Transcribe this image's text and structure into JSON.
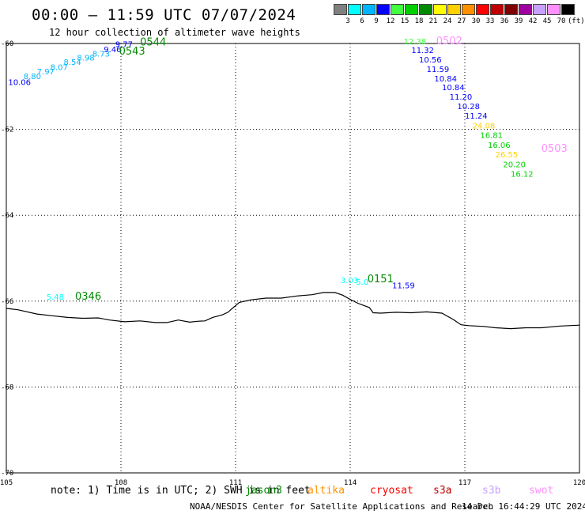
{
  "header": {
    "title": "00:00 — 11:59 UTC 07/07/2024",
    "subtitle": "12 hour collection of altimeter wave heights"
  },
  "legend": {
    "unit": "(ft)",
    "bins": [
      {
        "color": "#808080",
        "label": "3"
      },
      {
        "color": "#00ffff",
        "label": "6"
      },
      {
        "color": "#00b4ff",
        "label": "9"
      },
      {
        "color": "#0000ff",
        "label": "12"
      },
      {
        "color": "#40ff40",
        "label": "15"
      },
      {
        "color": "#00d000",
        "label": "18"
      },
      {
        "color": "#008a00",
        "label": "21"
      },
      {
        "color": "#ffff00",
        "label": "24"
      },
      {
        "color": "#ffd000",
        "label": "27"
      },
      {
        "color": "#ff9000",
        "label": "30"
      },
      {
        "color": "#ff0000",
        "label": "33"
      },
      {
        "color": "#c00000",
        "label": "36"
      },
      {
        "color": "#800000",
        "label": "39"
      },
      {
        "color": "#a000a0",
        "label": "42"
      },
      {
        "color": "#c8a0ff",
        "label": "45"
      },
      {
        "color": "#ff90ff",
        "label": "70"
      },
      {
        "color": "#000000",
        "label": ""
      }
    ]
  },
  "map": {
    "lon_range": [
      105,
      120
    ],
    "lat_range": [
      -70,
      -60
    ],
    "lon_ticks": [
      {
        "lon": 105,
        "label": "105"
      },
      {
        "lon": 108,
        "label": "108"
      },
      {
        "lon": 111,
        "label": "111"
      },
      {
        "lon": 114,
        "label": "114"
      },
      {
        "lon": 117,
        "label": "117"
      },
      {
        "lon": 120,
        "label": "120"
      }
    ],
    "lat_ticks": [
      {
        "lat": -60,
        "label": "-60"
      },
      {
        "lat": -62,
        "label": "-62"
      },
      {
        "lat": -64,
        "label": "-64"
      },
      {
        "lat": -66,
        "label": "-66"
      },
      {
        "lat": -68,
        "label": "-68"
      },
      {
        "lat": -70,
        "label": "-70"
      }
    ],
    "grid": "dotted",
    "coastline": [
      [
        105.0,
        -66.17
      ],
      [
        105.3,
        -66.2
      ],
      [
        105.8,
        -66.3
      ],
      [
        106.2,
        -66.34
      ],
      [
        106.6,
        -66.38
      ],
      [
        107.0,
        -66.4
      ],
      [
        107.4,
        -66.39
      ],
      [
        107.7,
        -66.44
      ],
      [
        108.1,
        -66.48
      ],
      [
        108.5,
        -66.46
      ],
      [
        108.9,
        -66.5
      ],
      [
        109.2,
        -66.5
      ],
      [
        109.5,
        -66.44
      ],
      [
        109.8,
        -66.49
      ],
      [
        110.0,
        -66.47
      ],
      [
        110.2,
        -66.46
      ],
      [
        110.4,
        -66.38
      ],
      [
        110.65,
        -66.32
      ],
      [
        110.8,
        -66.26
      ],
      [
        110.9,
        -66.18
      ],
      [
        111.1,
        -66.03
      ],
      [
        111.4,
        -65.97
      ],
      [
        111.8,
        -65.93
      ],
      [
        112.2,
        -65.93
      ],
      [
        112.6,
        -65.88
      ],
      [
        113.0,
        -65.85
      ],
      [
        113.3,
        -65.8
      ],
      [
        113.6,
        -65.8
      ],
      [
        113.8,
        -65.86
      ],
      [
        114.0,
        -65.96
      ],
      [
        114.2,
        -66.05
      ],
      [
        114.35,
        -66.1
      ],
      [
        114.5,
        -66.15
      ],
      [
        114.6,
        -66.27
      ],
      [
        114.8,
        -66.28
      ],
      [
        115.2,
        -66.26
      ],
      [
        115.6,
        -66.27
      ],
      [
        116.0,
        -66.25
      ],
      [
        116.4,
        -66.28
      ],
      [
        116.7,
        -66.43
      ],
      [
        116.9,
        -66.55
      ],
      [
        117.1,
        -66.57
      ],
      [
        117.5,
        -66.59
      ],
      [
        117.8,
        -66.62
      ],
      [
        118.2,
        -66.64
      ],
      [
        118.6,
        -66.62
      ],
      [
        119.0,
        -66.62
      ],
      [
        119.5,
        -66.58
      ],
      [
        120.0,
        -66.56
      ]
    ],
    "passes": [
      {
        "label": "0543",
        "lon": 107.95,
        "lat": -60.26,
        "color": "#008a00"
      },
      {
        "label": "0544",
        "lon": 108.5,
        "lat": -60.05,
        "color": "#008a00"
      },
      {
        "label": "0502",
        "lon": 116.25,
        "lat": -60.02,
        "color": "#ff90ff"
      },
      {
        "label": "0503",
        "lon": 119.0,
        "lat": -62.52,
        "color": "#ff90ff"
      },
      {
        "label": "0346",
        "lon": 106.8,
        "lat": -65.97,
        "color": "#008a00"
      },
      {
        "label": "0151",
        "lon": 114.45,
        "lat": -65.56,
        "color": "#008a00"
      }
    ],
    "wave_labels": [
      {
        "value": "10.06",
        "lon": 105.05,
        "lat": -60.97,
        "color": "#0000ff"
      },
      {
        "value": "8.80",
        "lon": 105.45,
        "lat": -60.83,
        "color": "#00b4ff"
      },
      {
        "value": "7.97",
        "lon": 105.8,
        "lat": -60.72,
        "color": "#00b4ff"
      },
      {
        "value": "8.07",
        "lon": 106.15,
        "lat": -60.62,
        "color": "#00b4ff"
      },
      {
        "value": "8.54",
        "lon": 106.5,
        "lat": -60.5,
        "color": "#00b4ff"
      },
      {
        "value": "8.98",
        "lon": 106.85,
        "lat": -60.4,
        "color": "#00b4ff"
      },
      {
        "value": "8.73",
        "lon": 107.25,
        "lat": -60.3,
        "color": "#00b4ff"
      },
      {
        "value": "9.46",
        "lon": 107.55,
        "lat": -60.2,
        "color": "#0000ff"
      },
      {
        "value": "9.77",
        "lon": 107.85,
        "lat": -60.08,
        "color": "#0000ff"
      },
      {
        "value": "12.38",
        "lon": 115.4,
        "lat": -60.02,
        "color": "#40ff40"
      },
      {
        "value": "11.32",
        "lon": 115.6,
        "lat": -60.22,
        "color": "#0000ff"
      },
      {
        "value": "10.56",
        "lon": 115.8,
        "lat": -60.44,
        "color": "#0000ff"
      },
      {
        "value": "11.59",
        "lon": 116.0,
        "lat": -60.66,
        "color": "#0000ff"
      },
      {
        "value": "10.84",
        "lon": 116.2,
        "lat": -60.88,
        "color": "#0000ff"
      },
      {
        "value": "10.84",
        "lon": 116.4,
        "lat": -61.09,
        "color": "#0000ff"
      },
      {
        "value": "11.20",
        "lon": 116.6,
        "lat": -61.31,
        "color": "#0000ff"
      },
      {
        "value": "10.28",
        "lon": 116.8,
        "lat": -61.53,
        "color": "#0000ff"
      },
      {
        "value": "11.24",
        "lon": 117.0,
        "lat": -61.75,
        "color": "#0000ff"
      },
      {
        "value": "24.08",
        "lon": 117.2,
        "lat": -61.98,
        "color": "#ffd000"
      },
      {
        "value": "16.81",
        "lon": 117.4,
        "lat": -62.2,
        "color": "#00d000"
      },
      {
        "value": "16.06",
        "lon": 117.6,
        "lat": -62.43,
        "color": "#00d000"
      },
      {
        "value": "26.55",
        "lon": 117.8,
        "lat": -62.65,
        "color": "#ffd000"
      },
      {
        "value": "20.20",
        "lon": 118.0,
        "lat": -62.88,
        "color": "#00d000"
      },
      {
        "value": "16.12",
        "lon": 118.2,
        "lat": -63.1,
        "color": "#00d000"
      },
      {
        "value": "5.48",
        "lon": 106.05,
        "lat": -65.97,
        "color": "#00ffff"
      },
      {
        "value": "3.03",
        "lon": 113.75,
        "lat": -65.58,
        "color": "#00ffff"
      },
      {
        "value": "5.0",
        "lon": 114.15,
        "lat": -65.62,
        "color": "#00ffff"
      },
      {
        "value": "11.59",
        "lon": 115.1,
        "lat": -65.7,
        "color": "#0000ff"
      }
    ]
  },
  "footer": {
    "note": "note: 1) Time is in UTC; 2) SWH is in feet",
    "missions": [
      {
        "name": "jason3",
        "color": "#008a00"
      },
      {
        "name": "altika",
        "color": "#ff9000"
      },
      {
        "name": "cryosat",
        "color": "#ff0000"
      },
      {
        "name": "s3a",
        "color": "#c00000"
      },
      {
        "name": "s3b",
        "color": "#c8a0ff"
      },
      {
        "name": "swot",
        "color": "#ff90ff"
      }
    ],
    "credit": "NOAA/NESDIS Center for Satellite Applications and Research",
    "generated": "14 Dec 16:44:29 UTC 2024"
  }
}
